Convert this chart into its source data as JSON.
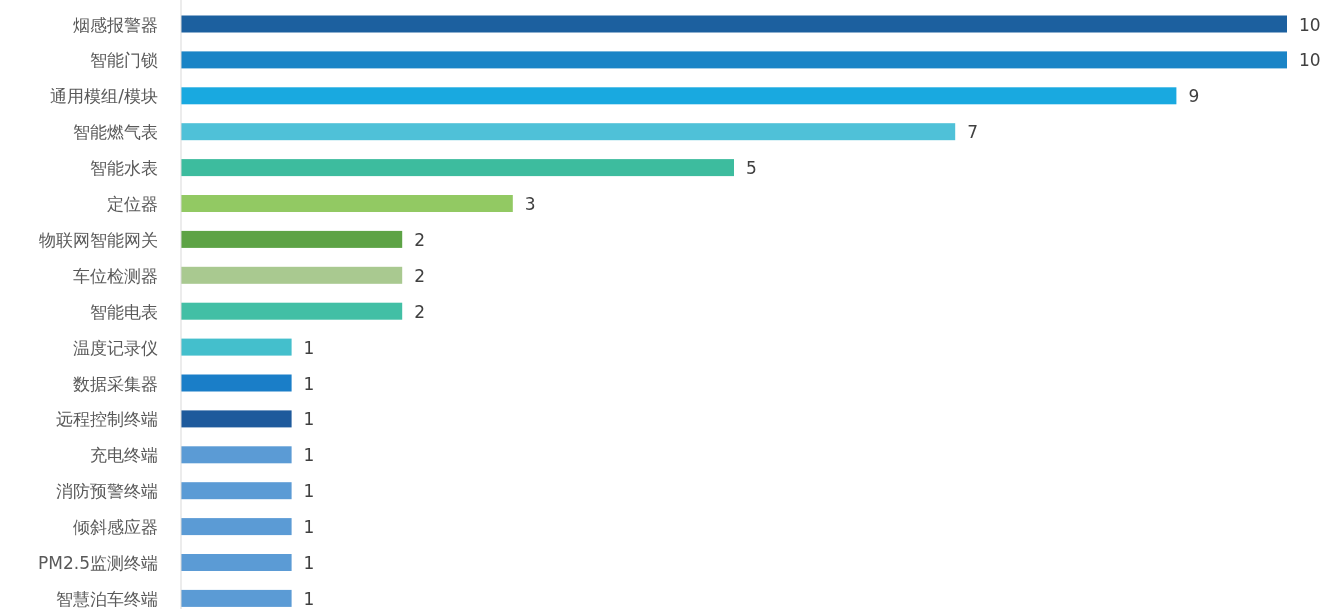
{
  "chart_data": {
    "type": "bar",
    "orientation": "horizontal",
    "data_labels": true,
    "categories": [
      "烟感报警器",
      "智能门锁",
      "通用模组/模块",
      "智能燃气表",
      "智能水表",
      "定位器",
      "物联网智能网关",
      "车位检测器",
      "智能电表",
      "温度记录仪",
      "数据采集器",
      "远程控制终端",
      "充电终端",
      "消防预警终端",
      "倾斜感应器",
      "PM2.5监测终端",
      "智慧泊车终端"
    ],
    "values": [
      10,
      10,
      9,
      7,
      5,
      3,
      2,
      2,
      2,
      1,
      1,
      1,
      1,
      1,
      1,
      1,
      1
    ],
    "colors": [
      "#1c609f",
      "#1a84c6",
      "#19a9e0",
      "#4fc1d8",
      "#3dbc9e",
      "#92c963",
      "#5da345",
      "#a9c990",
      "#42bfa5",
      "#44bfcc",
      "#1a7ec8",
      "#1e5a9c",
      "#5b9bd5",
      "#5b9bd5",
      "#5b9bd5",
      "#5b9bd5",
      "#5b9bd5"
    ]
  }
}
